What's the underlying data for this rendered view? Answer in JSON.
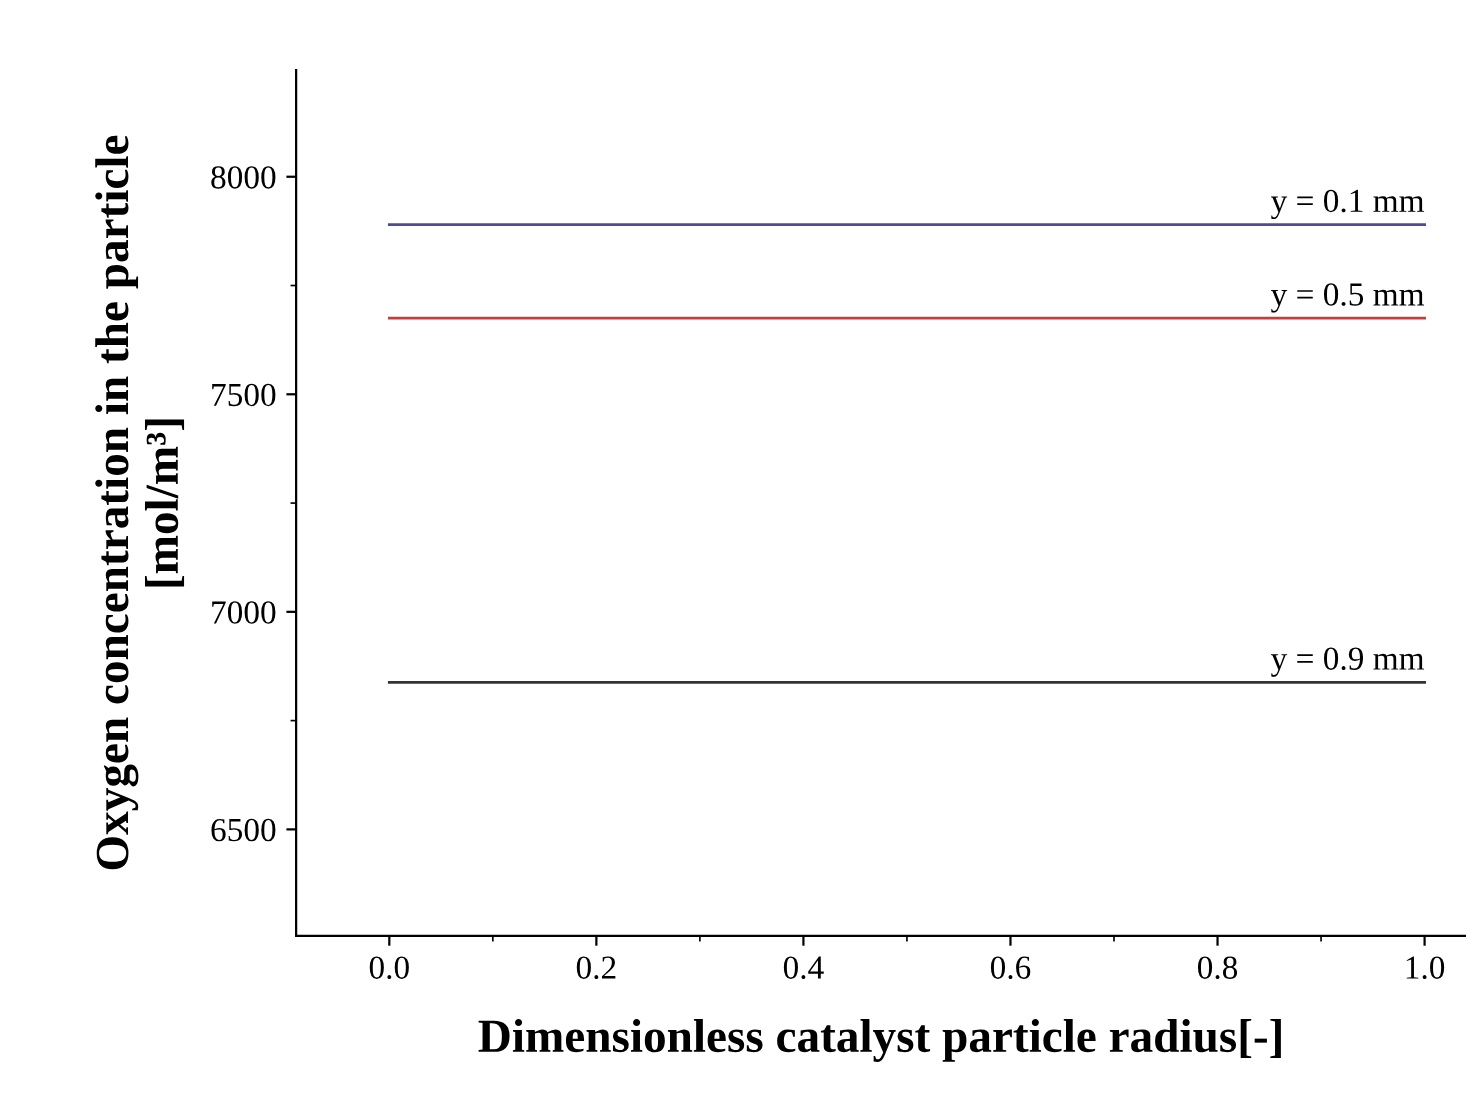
{
  "chart_data": {
    "type": "line",
    "xlabel": "Dimensionless catalyst particle radius[-]",
    "ylabel": "Oxygen concentration in the particle\n[mol/m³]",
    "x": [
      0.0,
      1.0
    ],
    "series": [
      {
        "name": "y = 0.1 mm",
        "color": "#4b4b9a",
        "values": [
          7890,
          7890
        ]
      },
      {
        "name": "y = 0.5 mm",
        "color": "#c83c3c",
        "values": [
          7675,
          7675
        ]
      },
      {
        "name": "y = 0.9 mm",
        "color": "#333333",
        "values": [
          6838,
          6838
        ]
      }
    ],
    "xlim": [
      -0.09,
      1.04
    ],
    "xticks": [
      {
        "value": 0.0,
        "label": "0.0"
      },
      0.2,
      0.4,
      0.6,
      0.8,
      {
        "value": 1.0,
        "label": "1.0"
      }
    ],
    "ylim": [
      6255,
      8245
    ],
    "yticks": [
      6500,
      7000,
      7500,
      8000
    ],
    "grid": false,
    "legend": false,
    "marker": "none",
    "line_style": "solid"
  }
}
